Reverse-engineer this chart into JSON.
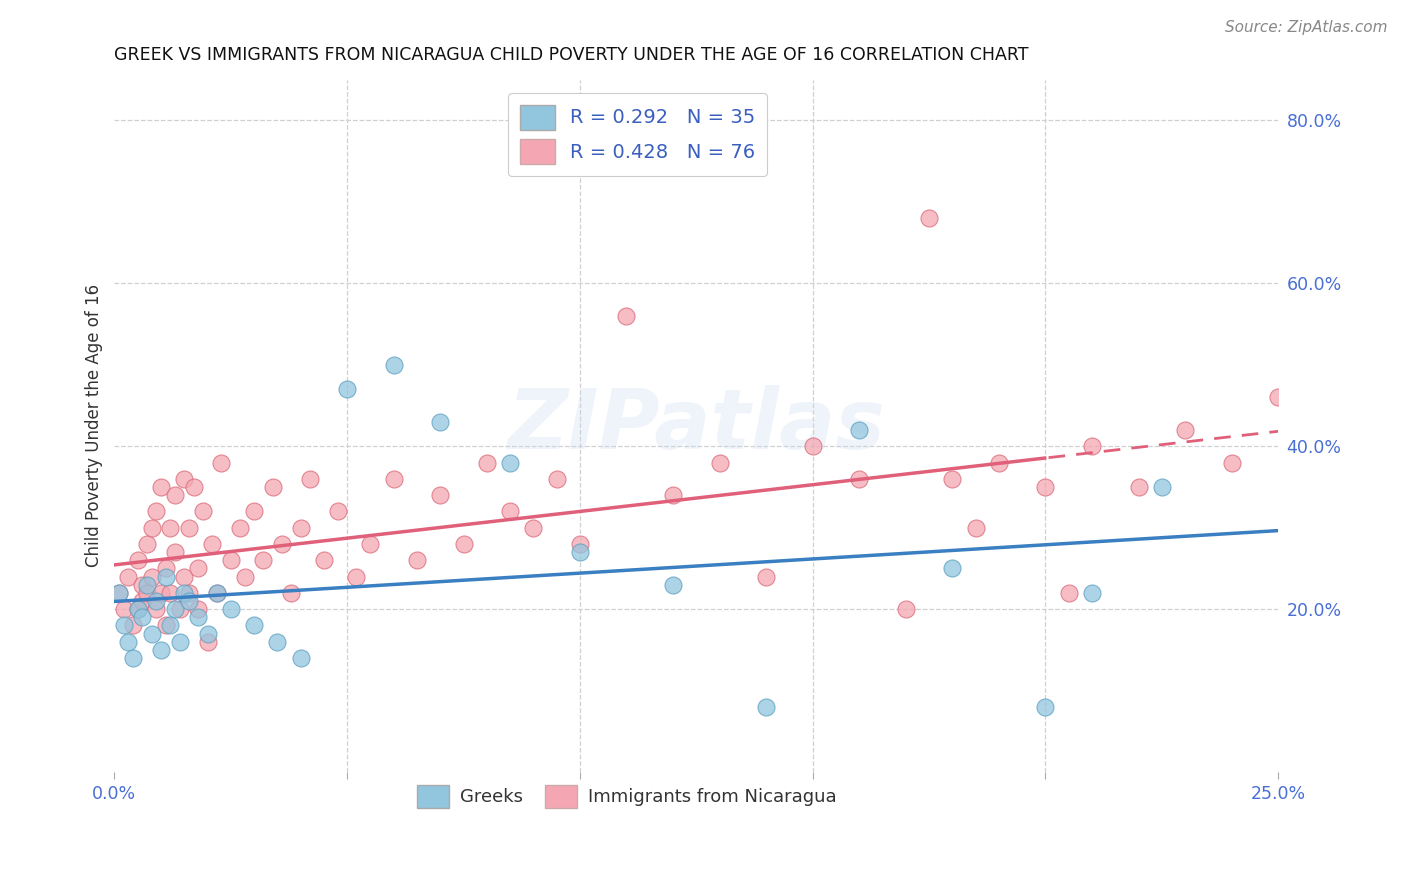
{
  "title": "GREEK VS IMMIGRANTS FROM NICARAGUA CHILD POVERTY UNDER THE AGE OF 16 CORRELATION CHART",
  "source": "Source: ZipAtlas.com",
  "ylabel": "Child Poverty Under the Age of 16",
  "xlim": [
    0.0,
    0.25
  ],
  "ylim": [
    0.0,
    0.85
  ],
  "greek_color": "#92c5de",
  "greek_edge_color": "#5a9fc0",
  "nicaragua_color": "#f4a7b2",
  "nicaragua_edge_color": "#d96878",
  "greek_line_color": "#3a7fc1",
  "nicaragua_line_color": "#e0607a",
  "greek_R": 0.292,
  "greek_N": 35,
  "nicaragua_R": 0.428,
  "nicaragua_N": 76,
  "legend_label_greek": "Greeks",
  "legend_label_nicaragua": "Immigrants from Nicaragua",
  "watermark": "ZIPatlas",
  "ytick_positions": [
    0.2,
    0.4,
    0.6,
    0.8
  ],
  "ytick_labels": [
    "20.0%",
    "40.0%",
    "60.0%",
    "80.0%"
  ],
  "xtick_positions": [
    0.0,
    0.05,
    0.1,
    0.15,
    0.2,
    0.25
  ],
  "xtick_labels": [
    "0.0%",
    "",
    "",
    "",
    "",
    "25.0%"
  ],
  "greek_x": [
    0.001,
    0.002,
    0.003,
    0.004,
    0.005,
    0.006,
    0.007,
    0.008,
    0.009,
    0.01,
    0.011,
    0.012,
    0.013,
    0.014,
    0.015,
    0.016,
    0.018,
    0.02,
    0.022,
    0.025,
    0.03,
    0.035,
    0.04,
    0.05,
    0.06,
    0.07,
    0.085,
    0.1,
    0.12,
    0.14,
    0.16,
    0.18,
    0.2,
    0.21,
    0.225
  ],
  "greek_y": [
    0.22,
    0.18,
    0.16,
    0.14,
    0.2,
    0.19,
    0.23,
    0.17,
    0.21,
    0.15,
    0.24,
    0.18,
    0.2,
    0.16,
    0.22,
    0.21,
    0.19,
    0.17,
    0.22,
    0.2,
    0.18,
    0.16,
    0.14,
    0.47,
    0.5,
    0.43,
    0.38,
    0.27,
    0.23,
    0.08,
    0.42,
    0.25,
    0.08,
    0.22,
    0.35
  ],
  "nicaragua_x": [
    0.001,
    0.002,
    0.003,
    0.004,
    0.005,
    0.005,
    0.006,
    0.006,
    0.007,
    0.007,
    0.008,
    0.008,
    0.009,
    0.009,
    0.01,
    0.01,
    0.011,
    0.011,
    0.012,
    0.012,
    0.013,
    0.013,
    0.014,
    0.015,
    0.015,
    0.016,
    0.016,
    0.017,
    0.018,
    0.018,
    0.019,
    0.02,
    0.021,
    0.022,
    0.023,
    0.025,
    0.027,
    0.028,
    0.03,
    0.032,
    0.034,
    0.036,
    0.038,
    0.04,
    0.042,
    0.045,
    0.048,
    0.052,
    0.055,
    0.06,
    0.065,
    0.07,
    0.075,
    0.08,
    0.085,
    0.09,
    0.095,
    0.1,
    0.11,
    0.12,
    0.13,
    0.14,
    0.15,
    0.16,
    0.17,
    0.175,
    0.18,
    0.185,
    0.19,
    0.2,
    0.205,
    0.21,
    0.22,
    0.23,
    0.24,
    0.25
  ],
  "nicaragua_y": [
    0.22,
    0.2,
    0.24,
    0.18,
    0.26,
    0.2,
    0.23,
    0.21,
    0.28,
    0.22,
    0.3,
    0.24,
    0.2,
    0.32,
    0.22,
    0.35,
    0.25,
    0.18,
    0.3,
    0.22,
    0.27,
    0.34,
    0.2,
    0.36,
    0.24,
    0.3,
    0.22,
    0.35,
    0.25,
    0.2,
    0.32,
    0.16,
    0.28,
    0.22,
    0.38,
    0.26,
    0.3,
    0.24,
    0.32,
    0.26,
    0.35,
    0.28,
    0.22,
    0.3,
    0.36,
    0.26,
    0.32,
    0.24,
    0.28,
    0.36,
    0.26,
    0.34,
    0.28,
    0.38,
    0.32,
    0.3,
    0.36,
    0.28,
    0.56,
    0.34,
    0.38,
    0.24,
    0.4,
    0.36,
    0.2,
    0.68,
    0.36,
    0.3,
    0.38,
    0.35,
    0.22,
    0.4,
    0.35,
    0.42,
    0.38,
    0.46
  ]
}
